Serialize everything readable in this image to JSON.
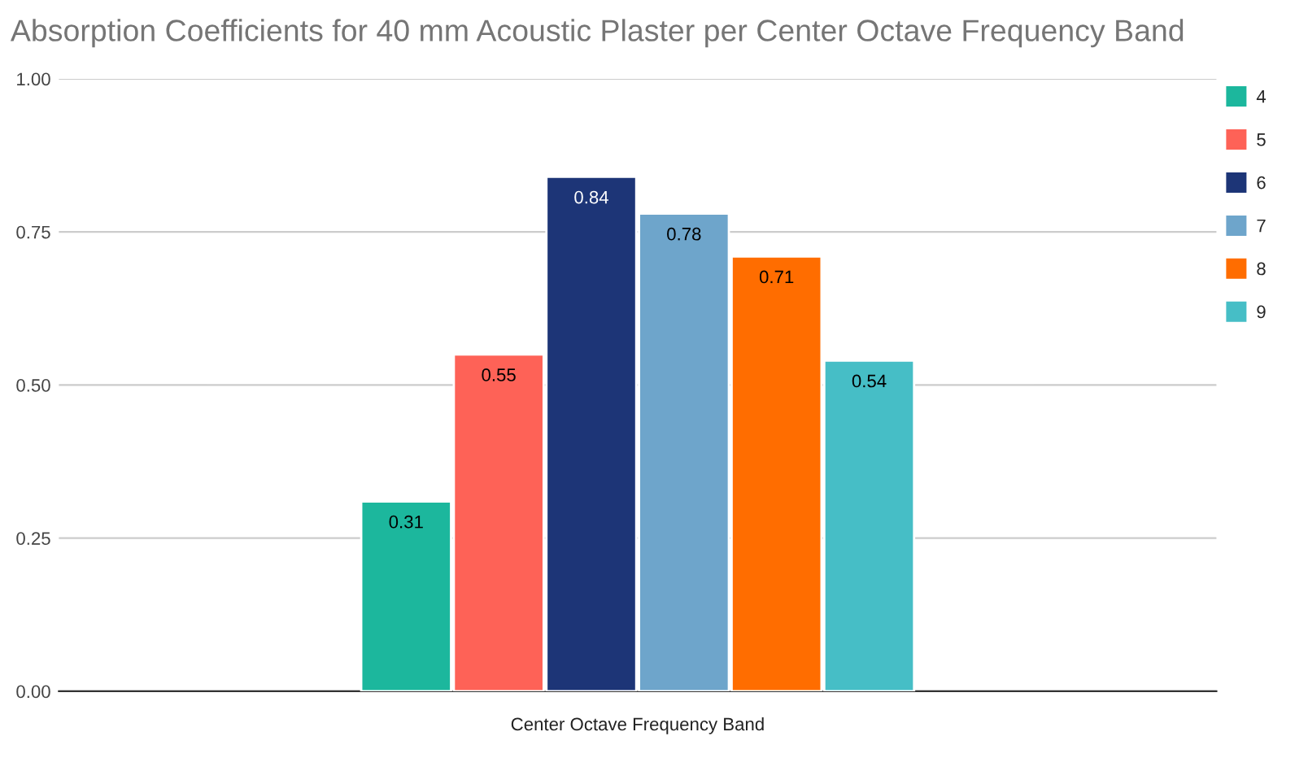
{
  "chart_data": {
    "type": "bar",
    "title": "Absorption Coefficients for 40 mm Acoustic Plaster per Center Octave Frequency Band",
    "xlabel": "Center Octave Frequency Band",
    "categories": [
      null
    ],
    "series": [
      {
        "name": "4",
        "color": "#1cb79d",
        "values": [
          0.31
        ]
      },
      {
        "name": "5",
        "color": "#fe6257",
        "values": [
          0.55
        ]
      },
      {
        "name": "6",
        "color": "#1d3577",
        "values": [
          0.84
        ]
      },
      {
        "name": "7",
        "color": "#6ea5cb",
        "values": [
          0.78
        ]
      },
      {
        "name": "8",
        "color": "#ff6d00",
        "values": [
          0.71
        ]
      },
      {
        "name": "9",
        "color": "#46bec6",
        "values": [
          0.54
        ]
      }
    ],
    "ylim": [
      0,
      1
    ],
    "yticks": [
      {
        "value": 0,
        "label": "0.00"
      },
      {
        "value": 0.25,
        "label": "0.25"
      },
      {
        "value": 0.5,
        "label": "0.50"
      },
      {
        "value": 0.75,
        "label": "0.75"
      },
      {
        "value": 1,
        "label": "1.00"
      }
    ],
    "grid": "y",
    "legend": "top right",
    "data_labels": true
  }
}
